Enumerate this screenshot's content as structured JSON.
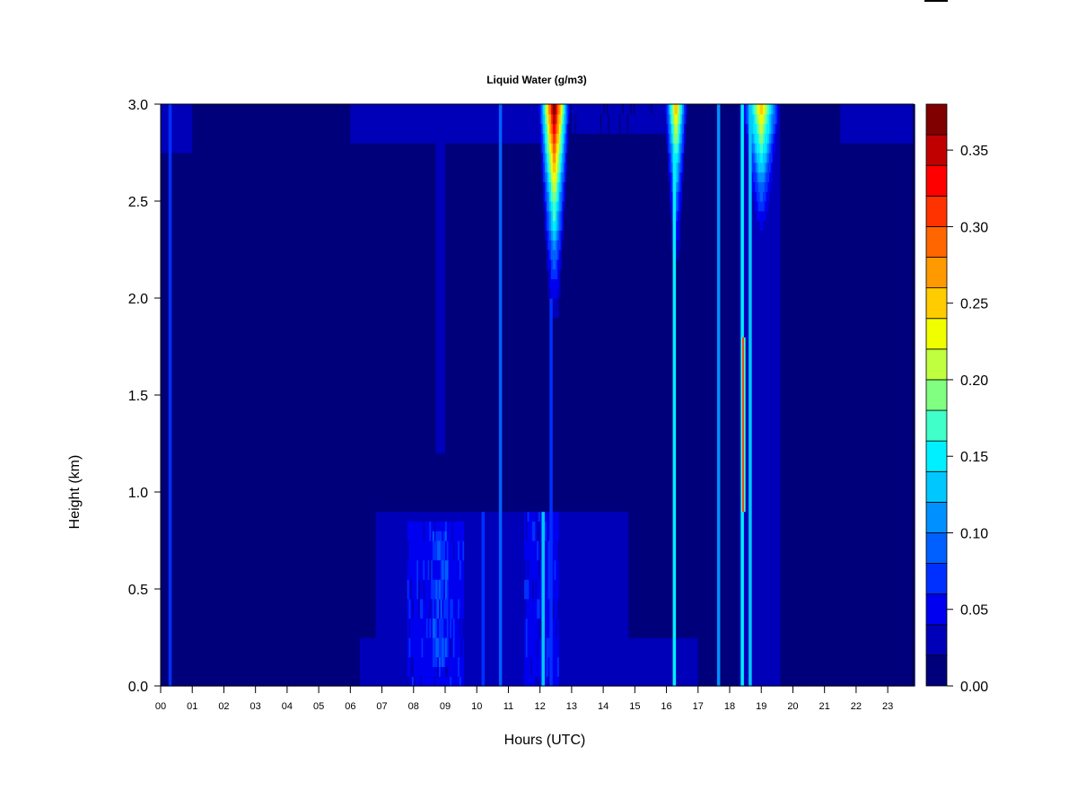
{
  "chart_data": {
    "type": "heatmap",
    "title": "Liquid Water (g/m3)",
    "xlabel": "Hours (UTC)",
    "ylabel": "Height (km)",
    "xlim": [
      0,
      23.82
    ],
    "ylim": [
      0,
      3.0
    ],
    "x_ticks": [
      "00",
      "01",
      "02",
      "03",
      "04",
      "05",
      "06",
      "07",
      "08",
      "09",
      "10",
      "11",
      "12",
      "13",
      "14",
      "15",
      "16",
      "17",
      "18",
      "19",
      "20",
      "21",
      "22",
      "23"
    ],
    "y_ticks": [
      "0.0",
      "0.5",
      "1.0",
      "1.5",
      "2.0",
      "2.5",
      "3.0"
    ],
    "colorbar": {
      "levels": [
        0,
        0.02,
        0.04,
        0.06,
        0.08,
        0.1,
        0.12,
        0.14,
        0.16,
        0.18,
        0.2,
        0.22,
        0.24,
        0.26,
        0.28,
        0.3,
        0.32,
        0.34,
        0.36,
        0.38
      ],
      "colors": [
        "#00007a",
        "#0000b8",
        "#0000f0",
        "#0030ff",
        "#0060ff",
        "#0090ff",
        "#00c8ff",
        "#00f0ff",
        "#40ffc8",
        "#80ff80",
        "#c0ff40",
        "#f0ff00",
        "#ffcc00",
        "#ff9900",
        "#ff6600",
        "#ff3300",
        "#ff0000",
        "#c00000",
        "#800000"
      ],
      "tick_labels": [
        "0.00",
        "0.05",
        "0.10",
        "0.15",
        "0.20",
        "0.25",
        "0.30",
        "0.35"
      ]
    },
    "background_value": 0.01,
    "layers": [
      {
        "hours": [
          0,
          1.0
        ],
        "height_km": [
          2.75,
          3.0
        ],
        "value": 0.03
      },
      {
        "hours": [
          6.0,
          12.0
        ],
        "height_km": [
          2.8,
          3.0
        ],
        "value": 0.03
      },
      {
        "hours": [
          13.0,
          16.0
        ],
        "height_km": [
          2.85,
          3.0
        ],
        "value": 0.025
      },
      {
        "hours": [
          21.5,
          23.82
        ],
        "height_km": [
          2.8,
          3.0
        ],
        "value": 0.03
      },
      {
        "hours": [
          6.8,
          14.8
        ],
        "height_km": [
          0,
          0.9
        ],
        "value": 0.03
      },
      {
        "hours": [
          6.3,
          17.0
        ],
        "height_km": [
          0,
          0.25
        ],
        "value": 0.03
      },
      {
        "hours": [
          7.8,
          9.6
        ],
        "height_km": [
          0,
          0.85
        ],
        "value": 0.05
      },
      {
        "hours": [
          8.6,
          9.1
        ],
        "height_km": [
          0.1,
          0.8
        ],
        "value": 0.07
      },
      {
        "hours": [
          11.5,
          12.6
        ],
        "height_km": [
          0,
          0.9
        ],
        "value": 0.05
      },
      {
        "hours": [
          8.7,
          9.0
        ],
        "height_km": [
          1.2,
          3.0
        ],
        "value": 0.03
      },
      {
        "hours": [
          18.3,
          19.6
        ],
        "height_km": [
          0,
          3.0
        ],
        "value": 0.03
      }
    ],
    "lines": [
      {
        "hour": 0.3,
        "height_km": [
          0,
          3.0
        ],
        "value": 0.06
      },
      {
        "hour": 10.75,
        "height_km": [
          0,
          3.0
        ],
        "value": 0.08
      },
      {
        "hour": 10.2,
        "height_km": [
          0,
          0.9
        ],
        "value": 0.06
      },
      {
        "hour": 12.1,
        "height_km": [
          0,
          0.9
        ],
        "value": 0.13
      },
      {
        "hour": 12.35,
        "height_km": [
          0,
          2.0
        ],
        "value": 0.07
      },
      {
        "hour": 16.25,
        "height_km": [
          0,
          3.0
        ],
        "value": 0.14
      },
      {
        "hour": 17.65,
        "height_km": [
          0,
          3.0
        ],
        "value": 0.1
      },
      {
        "hour": 18.4,
        "height_km": [
          0,
          3.0
        ],
        "value": 0.15
      },
      {
        "hour": 18.42,
        "height_km": [
          0.9,
          1.8
        ],
        "value": 0.3
      },
      {
        "hour": 18.65,
        "height_km": [
          0,
          3.0
        ],
        "value": 0.12
      }
    ],
    "plumes": [
      {
        "hour": 12.45,
        "half_width_h": 0.5,
        "top_value": 0.37,
        "base_km": 1.9
      },
      {
        "hour": 16.3,
        "half_width_h": 0.35,
        "top_value": 0.24,
        "base_km": 2.2
      },
      {
        "hour": 19.0,
        "half_width_h": 0.6,
        "top_value": 0.25,
        "base_km": 2.3
      }
    ]
  }
}
